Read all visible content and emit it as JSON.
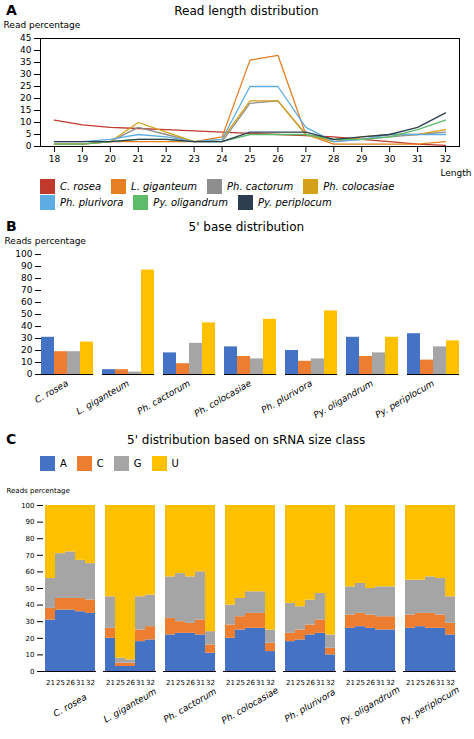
{
  "chart_data": [
    {
      "type": "line",
      "title": "Read length distribution",
      "xlabel": "Length",
      "ylabel": "Read percentage",
      "annotations": [
        "A"
      ],
      "x": [
        18,
        19,
        20,
        21,
        22,
        23,
        24,
        25,
        26,
        27,
        28,
        29,
        30,
        31,
        32
      ],
      "series": [
        {
          "name": "C. rosea",
          "color": "#c0392b",
          "values": [
            11,
            9,
            8,
            7.5,
            7,
            6.5,
            6,
            5.5,
            5,
            4.5,
            4,
            3,
            2,
            1,
            0.5
          ]
        },
        {
          "name": "L. giganteum",
          "color": "#e67e22",
          "values": [
            1,
            1,
            2,
            2,
            2,
            2,
            4,
            36,
            38,
            5,
            1,
            1,
            1,
            1,
            2
          ]
        },
        {
          "name": "Ph. cactorum",
          "color": "#8e8e8e",
          "values": [
            1,
            1,
            2,
            8,
            5,
            2,
            2,
            18,
            19,
            5,
            2,
            3,
            4,
            5,
            6
          ]
        },
        {
          "name": "Ph. colocasiae",
          "color": "#d4a017",
          "values": [
            1,
            1,
            2,
            10,
            6,
            2,
            3,
            19,
            19,
            5,
            2,
            4,
            5,
            5,
            7
          ]
        },
        {
          "name": "Ph. plurivora",
          "color": "#5dade2",
          "values": [
            2,
            2,
            3,
            5,
            4,
            2,
            3,
            25,
            25,
            8,
            2,
            3,
            5,
            5,
            5
          ]
        },
        {
          "name": "Py. oligandrum",
          "color": "#5dbb6a",
          "values": [
            1,
            1,
            2,
            3,
            3,
            2,
            2,
            5,
            5,
            5,
            3,
            3,
            4,
            7,
            11
          ]
        },
        {
          "name": "Py. periplocum",
          "color": "#2c3e50",
          "values": [
            2,
            2,
            2,
            3,
            3,
            2,
            2,
            6,
            6,
            6,
            3,
            4,
            5,
            8,
            14
          ]
        }
      ],
      "xlim": [
        17.5,
        32.5
      ],
      "xticks": [
        18,
        19,
        20,
        21,
        22,
        23,
        24,
        25,
        26,
        27,
        28,
        29,
        30,
        31,
        32
      ],
      "ylim": [
        0,
        45
      ],
      "yticks": [
        0,
        5,
        10,
        15,
        20,
        25,
        30,
        35,
        40,
        45
      ],
      "grid": false,
      "legend": "bottom"
    },
    {
      "type": "bar",
      "title": "5' base distribution",
      "ylabel": "Reads percentage",
      "annotations": [
        "B"
      ],
      "categories": [
        "C. rosea",
        "L. giganteum",
        "Ph. cactorum",
        "Ph. colocasiae",
        "Ph. plurivora",
        "Py. oligandrum",
        "Py. periplocum"
      ],
      "series": [
        {
          "name": "A",
          "color": "#4472c4",
          "values": [
            31,
            4,
            18,
            23,
            20,
            31,
            34
          ]
        },
        {
          "name": "C",
          "color": "#ed7d31",
          "values": [
            19,
            4,
            9,
            15,
            11,
            15,
            12
          ]
        },
        {
          "name": "G",
          "color": "#a5a5a5",
          "values": [
            19,
            2,
            26,
            13,
            13,
            18,
            23
          ]
        },
        {
          "name": "U",
          "color": "#ffc000",
          "values": [
            27,
            87,
            43,
            46,
            53,
            31,
            28
          ]
        }
      ],
      "ylim": [
        0,
        100
      ],
      "yticks": [
        0,
        10,
        20,
        30,
        40,
        50,
        60,
        70,
        80,
        90,
        100
      ],
      "grid": false
    },
    {
      "type": "bar",
      "stacked": true,
      "title": "5' distribution based on sRNA size class",
      "ylabel": "Reads percentage",
      "annotations": [
        "C"
      ],
      "groups": [
        "C. rosea",
        "L. giganteum",
        "Ph. cactorum",
        "Ph. colocasiae",
        "Ph. plurivora",
        "Py. oligandrum",
        "Py. periplocum"
      ],
      "categories": [
        "21",
        "25",
        "26",
        "31",
        "32"
      ],
      "series": [
        {
          "name": "A",
          "color": "#4472c4",
          "values": [
            [
              31,
              37,
              37,
              36,
              35
            ],
            [
              20,
              3,
              3,
              18,
              19
            ],
            [
              22,
              23,
              23,
              22,
              11
            ],
            [
              20,
              25,
              26,
              26,
              12
            ],
            [
              18,
              19,
              22,
              23,
              10
            ],
            [
              26,
              27,
              26,
              25,
              25
            ],
            [
              26,
              27,
              26,
              26,
              22
            ]
          ]
        },
        {
          "name": "C",
          "color": "#ed7d31",
          "values": [
            [
              7,
              7,
              7,
              8,
              8
            ],
            [
              6,
              2,
              2,
              7,
              8
            ],
            [
              10,
              7,
              6,
              9,
              5
            ],
            [
              8,
              8,
              9,
              9,
              5
            ],
            [
              5,
              6,
              6,
              8,
              4
            ],
            [
              8,
              8,
              8,
              8,
              8
            ],
            [
              8,
              8,
              9,
              8,
              7
            ]
          ]
        },
        {
          "name": "G",
          "color": "#a5a5a5",
          "values": [
            [
              18,
              27,
              28,
              23,
              22
            ],
            [
              19,
              3,
              2,
              20,
              19
            ],
            [
              25,
              29,
              28,
              29,
              8
            ],
            [
              12,
              11,
              13,
              13,
              8
            ],
            [
              18,
              14,
              15,
              16,
              8
            ],
            [
              17,
              18,
              16,
              18,
              18
            ],
            [
              21,
              20,
              22,
              22,
              16
            ]
          ]
        },
        {
          "name": "U",
          "color": "#ffc000",
          "values": [
            [
              44,
              29,
              28,
              33,
              35
            ],
            [
              55,
              92,
              93,
              55,
              54
            ],
            [
              43,
              41,
              43,
              40,
              76
            ],
            [
              60,
              56,
              52,
              52,
              75
            ],
            [
              59,
              61,
              57,
              53,
              78
            ],
            [
              49,
              47,
              50,
              49,
              49
            ],
            [
              45,
              45,
              43,
              44,
              55
            ]
          ]
        }
      ],
      "ylim": [
        0,
        100
      ],
      "yticks": [
        0,
        10,
        20,
        30,
        40,
        50,
        60,
        70,
        80,
        90,
        100
      ],
      "grid": false,
      "legend": "top"
    }
  ]
}
